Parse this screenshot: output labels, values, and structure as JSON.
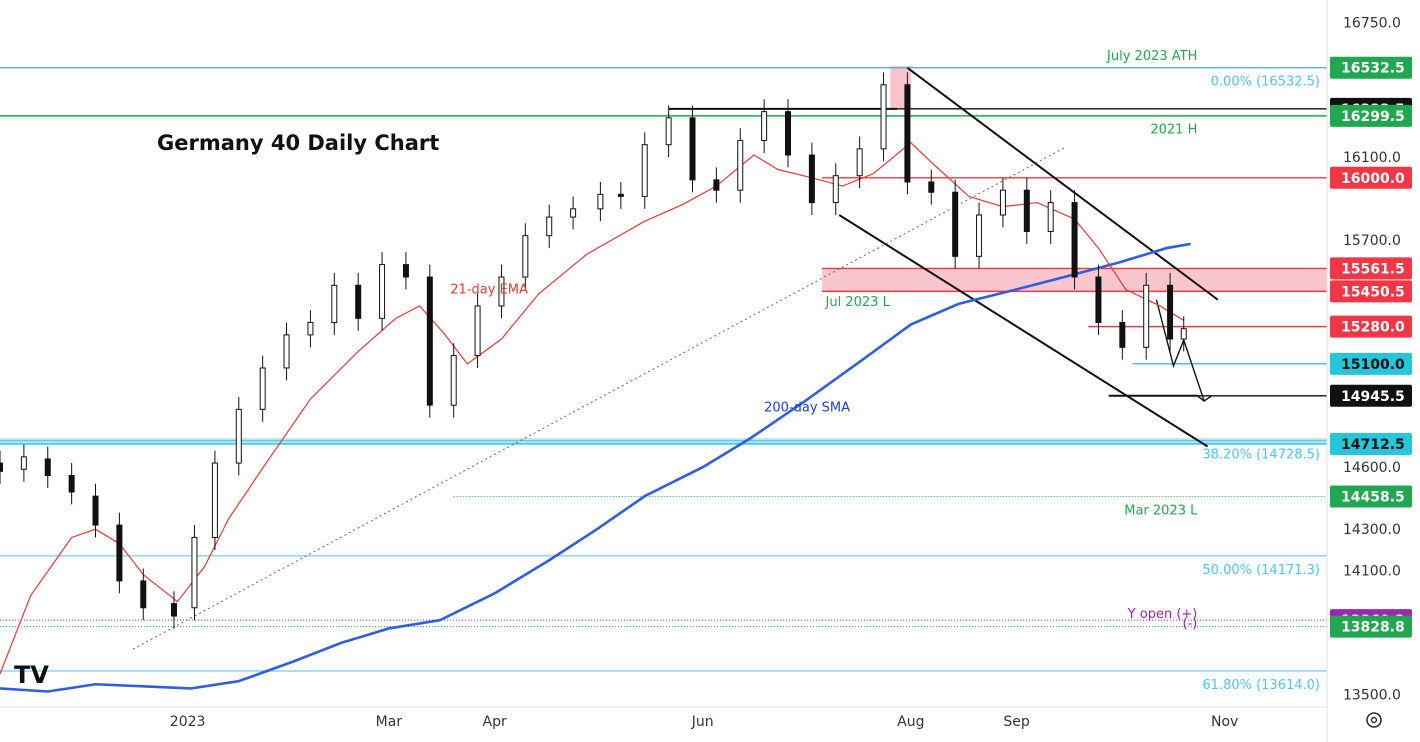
{
  "chart_data": {
    "type": "candlestick",
    "title": "Germany 40 Daily Chart",
    "xlabel": "",
    "ylabel": "",
    "ylim": [
      13440,
      16860
    ],
    "x_range": [
      "2022-11-07",
      "2023-12-01"
    ],
    "x_ticks": [
      {
        "date": "2023-01-01",
        "label": "2023"
      },
      {
        "date": "2023-03-01",
        "label": "Mar"
      },
      {
        "date": "2023-04-01",
        "label": "Apr"
      },
      {
        "date": "2023-06-01",
        "label": "Jun"
      },
      {
        "date": "2023-08-01",
        "label": "Aug"
      },
      {
        "date": "2023-09-01",
        "label": "Sep"
      },
      {
        "date": "2023-11-01",
        "label": "Nov"
      }
    ],
    "y_ticks": [
      {
        "value": 16750,
        "label": "16750.0"
      },
      {
        "value": 16100,
        "label": "16100.0"
      },
      {
        "value": 15700,
        "label": "15700.0"
      },
      {
        "value": 14600,
        "label": "14600.0"
      },
      {
        "value": 14300,
        "label": "14300.0"
      },
      {
        "value": 14100,
        "label": "14100.0"
      },
      {
        "value": 13500,
        "label": "13500.0"
      }
    ],
    "price_levels": [
      {
        "value": 16532.5,
        "label": "16532.5",
        "bg": "#1fa84f",
        "fg": "#ffffff",
        "line": "#5ab0e6",
        "line_start": "2022-11-07"
      },
      {
        "value": 16333.5,
        "label": "16333.5",
        "bg": "#111111",
        "fg": "#ffffff",
        "line": "#111111",
        "line_start": "2023-05-22"
      },
      {
        "value": 16299.5,
        "label": "16299.5",
        "bg": "#1fa84f",
        "fg": "#ffffff",
        "line": "#1fa84f",
        "line_start": "2022-11-07"
      },
      {
        "value": 16000.0,
        "label": "16000.0",
        "bg": "#f23645",
        "fg": "#ffffff",
        "line": "#f23645",
        "line_start": "2023-07-06"
      },
      {
        "value": 15561.5,
        "label": "15561.5",
        "bg": "#f23645",
        "fg": "#ffffff",
        "line": "#f23645",
        "line_start": "2023-07-06"
      },
      {
        "value": 15450.5,
        "label": "15450.5",
        "bg": "#f23645",
        "fg": "#ffffff",
        "line": "#f23645",
        "line_start": "2023-07-06"
      },
      {
        "value": 15280.0,
        "label": "15280.0",
        "bg": "#f23645",
        "fg": "#ffffff",
        "line": "#f23645",
        "line_start": "2023-09-22"
      },
      {
        "value": 15100.0,
        "label": "15100.0",
        "bg": "#26c6da",
        "fg": "#111111",
        "line": "#26c6da",
        "line_start": "2023-10-05"
      },
      {
        "value": 14945.5,
        "label": "14945.5",
        "bg": "#111111",
        "fg": "#ffffff",
        "line": "#111111",
        "line_start": "2023-09-29"
      },
      {
        "value": 14712.5,
        "label": "14712.5",
        "bg": "#26c6da",
        "fg": "#111111",
        "line": "#26c6da",
        "line_start": "2022-11-07"
      },
      {
        "value": 14458.5,
        "label": "14458.5",
        "bg": "#1fa84f",
        "fg": "#ffffff",
        "line": "#1fa84f",
        "line_start": "2023-03-20",
        "dotted": true
      },
      {
        "value": 13860.3,
        "label": "13860.3",
        "bg": "#9c27b0",
        "fg": "#ffffff",
        "line": "#9c27b0",
        "line_start": "2022-11-07",
        "dotted": true
      },
      {
        "value": 13828.8,
        "label": "13828.8",
        "bg": "#1fa84f",
        "fg": "#ffffff",
        "line": "#1fa84f",
        "line_start": "2022-11-07",
        "dotted": true
      }
    ],
    "fib_levels": [
      {
        "value": 16532.5,
        "label": "0.00% (16532.5)"
      },
      {
        "value": 14728.5,
        "label": "38.20% (14728.5)"
      },
      {
        "value": 14171.3,
        "label": "50.00% (14171.3)"
      },
      {
        "value": 13614.0,
        "label": "61.80% (13614.0)"
      }
    ],
    "text_annotations": [
      {
        "text": "July 2023 ATH",
        "date": "2023-10-24",
        "value": 16570,
        "color": "#1fa84f",
        "anchor": "end"
      },
      {
        "text": "2021 H",
        "date": "2023-10-24",
        "value": 16215,
        "color": "#1fa84f",
        "anchor": "end"
      },
      {
        "text": "Mar 2023 L",
        "date": "2023-10-24",
        "value": 14370,
        "color": "#1fa84f",
        "anchor": "end"
      },
      {
        "text": "Y open (+)",
        "date": "2023-10-24",
        "value": 13870,
        "color": "#9c27b0",
        "anchor": "end",
        "small": true
      },
      {
        "text": "(-)",
        "date": "2023-10-24",
        "value": 13825,
        "color": "#9c27b0",
        "anchor": "end",
        "small": true
      },
      {
        "text": "Jul 2023 L",
        "date": "2023-07-07",
        "value": 15380,
        "color": "#1fa84f",
        "anchor": "start"
      },
      {
        "text": "21-day EMA",
        "date": "2023-03-19",
        "value": 15440,
        "color": "#e53935",
        "anchor": "start"
      },
      {
        "text": "200-day SMA",
        "date": "2023-06-19",
        "value": 14870,
        "color": "#1a3fd6",
        "anchor": "start"
      }
    ],
    "resistance_zones": [
      {
        "from": 15450.5,
        "to": 15561.5,
        "start": "2023-07-06",
        "end": "2023-12-01"
      },
      {
        "from": 14712.5,
        "to": 14740,
        "start": "2022-11-07",
        "end": "2023-12-01",
        "color": "#a6e0f2"
      }
    ],
    "highlight_box": {
      "start": "2023-07-26",
      "end": "2023-08-01",
      "from": 16330,
      "to": 16540
    },
    "trendlines": [
      {
        "name": "channel-upper",
        "points": [
          [
            "2023-07-31",
            16532
          ],
          [
            "2023-10-30",
            15410
          ]
        ],
        "color": "#111111",
        "style": "solid"
      },
      {
        "name": "channel-lower",
        "points": [
          [
            "2023-07-11",
            15820
          ],
          [
            "2023-10-27",
            14700
          ]
        ],
        "color": "#111111",
        "style": "solid"
      },
      {
        "name": "ath-line",
        "points": [
          [
            "2023-05-22",
            16333.5
          ],
          [
            "2023-07-28",
            16333.5
          ]
        ],
        "color": "#111111",
        "style": "solid"
      },
      {
        "name": "rising-support",
        "points": [
          [
            "2022-12-16",
            13720
          ],
          [
            "2023-09-15",
            16145
          ]
        ],
        "color": "#666666",
        "style": "dotted"
      },
      {
        "name": "low-line",
        "points": [
          [
            "2023-09-28",
            14945.5
          ],
          [
            "2023-10-24",
            14945.5
          ]
        ],
        "color": "#111111",
        "style": "solid"
      }
    ],
    "projection_arrow": [
      [
        "2023-10-12",
        15410
      ],
      [
        "2023-10-17",
        15090
      ],
      [
        "2023-10-20",
        15215
      ],
      [
        "2023-10-26",
        14920
      ]
    ],
    "ema21": [
      [
        "2022-11-07",
        13600
      ],
      [
        "2022-11-16",
        13980
      ],
      [
        "2022-11-28",
        14260
      ],
      [
        "2022-12-05",
        14300
      ],
      [
        "2022-12-12",
        14230
      ],
      [
        "2022-12-19",
        14080
      ],
      [
        "2022-12-29",
        13950
      ],
      [
        "2023-01-06",
        14120
      ],
      [
        "2023-01-13",
        14350
      ],
      [
        "2023-01-24",
        14620
      ],
      [
        "2023-02-06",
        14930
      ],
      [
        "2023-02-20",
        15160
      ],
      [
        "2023-03-03",
        15320
      ],
      [
        "2023-03-10",
        15380
      ],
      [
        "2023-03-17",
        15250
      ],
      [
        "2023-03-24",
        15100
      ],
      [
        "2023-04-03",
        15220
      ],
      [
        "2023-04-14",
        15440
      ],
      [
        "2023-04-28",
        15630
      ],
      [
        "2023-05-15",
        15790
      ],
      [
        "2023-05-26",
        15870
      ],
      [
        "2023-06-05",
        15960
      ],
      [
        "2023-06-16",
        16110
      ],
      [
        "2023-06-23",
        16040
      ],
      [
        "2023-07-03",
        16000
      ],
      [
        "2023-07-12",
        15960
      ],
      [
        "2023-07-21",
        16020
      ],
      [
        "2023-08-01",
        16170
      ],
      [
        "2023-08-08",
        16060
      ],
      [
        "2023-08-18",
        15910
      ],
      [
        "2023-08-28",
        15860
      ],
      [
        "2023-09-07",
        15880
      ],
      [
        "2023-09-18",
        15800
      ],
      [
        "2023-09-25",
        15660
      ],
      [
        "2023-10-03",
        15460
      ],
      [
        "2023-10-13",
        15380
      ],
      [
        "2023-10-20",
        15310
      ]
    ],
    "sma200": [
      [
        "2022-11-07",
        13530
      ],
      [
        "2022-11-21",
        13515
      ],
      [
        "2022-12-05",
        13550
      ],
      [
        "2022-12-19",
        13540
      ],
      [
        "2023-01-02",
        13530
      ],
      [
        "2023-01-16",
        13565
      ],
      [
        "2023-02-01",
        13660
      ],
      [
        "2023-02-15",
        13750
      ],
      [
        "2023-03-01",
        13820
      ],
      [
        "2023-03-16",
        13860
      ],
      [
        "2023-04-01",
        13990
      ],
      [
        "2023-04-17",
        14150
      ],
      [
        "2023-05-01",
        14300
      ],
      [
        "2023-05-15",
        14460
      ],
      [
        "2023-06-01",
        14600
      ],
      [
        "2023-06-15",
        14740
      ],
      [
        "2023-07-01",
        14920
      ],
      [
        "2023-07-17",
        15110
      ],
      [
        "2023-08-01",
        15290
      ],
      [
        "2023-08-15",
        15390
      ],
      [
        "2023-09-01",
        15460
      ],
      [
        "2023-09-15",
        15520
      ],
      [
        "2023-10-01",
        15590
      ],
      [
        "2023-10-15",
        15660
      ],
      [
        "2023-10-22",
        15680
      ]
    ],
    "candles_open_close": [
      [
        "2022-11-07",
        14620,
        14580
      ],
      [
        "2022-11-14",
        14590,
        14650
      ],
      [
        "2022-11-21",
        14640,
        14560
      ],
      [
        "2022-11-28",
        14560,
        14480
      ],
      [
        "2022-12-05",
        14460,
        14320
      ],
      [
        "2022-12-12",
        14320,
        14050
      ],
      [
        "2022-12-19",
        14050,
        13920
      ],
      [
        "2022-12-28",
        13940,
        13880
      ],
      [
        "2023-01-03",
        13920,
        14260
      ],
      [
        "2023-01-09",
        14260,
        14620
      ],
      [
        "2023-01-16",
        14620,
        14880
      ],
      [
        "2023-01-23",
        14880,
        15080
      ],
      [
        "2023-01-30",
        15080,
        15240
      ],
      [
        "2023-02-06",
        15240,
        15300
      ],
      [
        "2023-02-13",
        15300,
        15480
      ],
      [
        "2023-02-20",
        15480,
        15320
      ],
      [
        "2023-02-27",
        15320,
        15580
      ],
      [
        "2023-03-06",
        15580,
        15520
      ],
      [
        "2023-03-13",
        15520,
        14900
      ],
      [
        "2023-03-20",
        14900,
        15140
      ],
      [
        "2023-03-27",
        15140,
        15380
      ],
      [
        "2023-04-03",
        15380,
        15520
      ],
      [
        "2023-04-10",
        15520,
        15720
      ],
      [
        "2023-04-17",
        15720,
        15810
      ],
      [
        "2023-04-24",
        15810,
        15850
      ],
      [
        "2023-05-02",
        15850,
        15920
      ],
      [
        "2023-05-08",
        15920,
        15910
      ],
      [
        "2023-05-15",
        15910,
        16160
      ],
      [
        "2023-05-22",
        16160,
        16290
      ],
      [
        "2023-05-29",
        16290,
        15990
      ],
      [
        "2023-06-05",
        15990,
        15940
      ],
      [
        "2023-06-12",
        15940,
        16180
      ],
      [
        "2023-06-19",
        16180,
        16320
      ],
      [
        "2023-06-26",
        16320,
        16110
      ],
      [
        "2023-07-03",
        16110,
        15880
      ],
      [
        "2023-07-10",
        15880,
        16010
      ],
      [
        "2023-07-17",
        16010,
        16140
      ],
      [
        "2023-07-24",
        16140,
        16450
      ],
      [
        "2023-07-31",
        16450,
        15980
      ],
      [
        "2023-08-07",
        15980,
        15930
      ],
      [
        "2023-08-14",
        15930,
        15620
      ],
      [
        "2023-08-21",
        15620,
        15820
      ],
      [
        "2023-08-28",
        15820,
        15940
      ],
      [
        "2023-09-04",
        15940,
        15740
      ],
      [
        "2023-09-11",
        15740,
        15880
      ],
      [
        "2023-09-18",
        15880,
        15520
      ],
      [
        "2023-09-25",
        15520,
        15300
      ],
      [
        "2023-10-02",
        15300,
        15180
      ],
      [
        "2023-10-09",
        15180,
        15480
      ],
      [
        "2023-10-16",
        15480,
        15220
      ],
      [
        "2023-10-20",
        15220,
        15270
      ]
    ]
  },
  "colors": {
    "up_candle": "#111111",
    "down_candle": "#111111",
    "ema": "#e53935",
    "sma": "#2f5fe0",
    "fib": "#4fc3f7",
    "zone": "#f7bcc3"
  },
  "ui": {
    "logo": "TV",
    "settings_icon": "gear-icon"
  }
}
